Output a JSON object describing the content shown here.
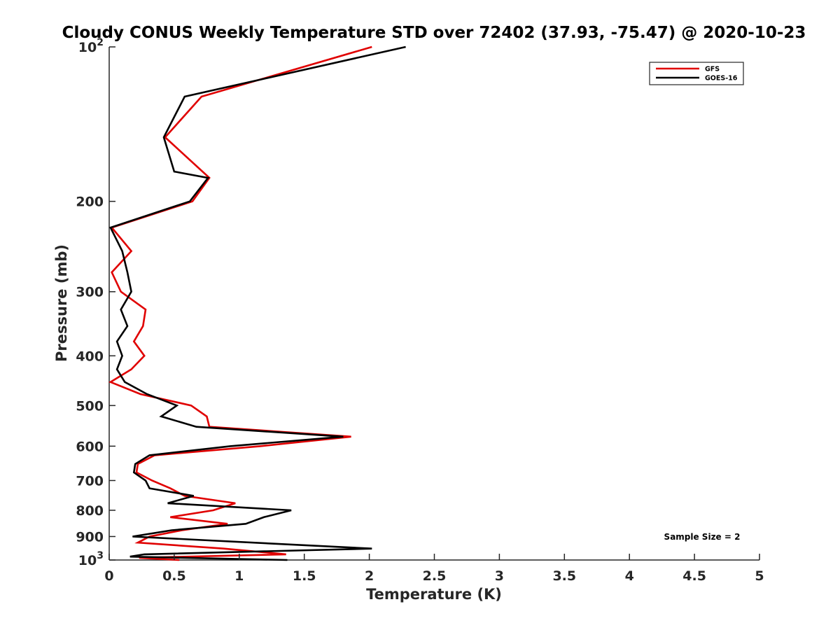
{
  "chart_data": {
    "type": "line",
    "title": "Cloudy CONUS Weekly Temperature STD over 72402 (37.93, -75.47) @ 2020-10-23",
    "xlabel": "Temperature (K)",
    "ylabel": "Pressure (mb)",
    "xlim": [
      0,
      5
    ],
    "ylim": [
      100,
      1000
    ],
    "y_scale": "log",
    "y_reversed": true,
    "grid": false,
    "legend_position": "top-right",
    "x_ticks": [
      "0",
      "0.5",
      "1",
      "1.5",
      "2",
      "2.5",
      "3",
      "3.5",
      "4",
      "4.5",
      "5"
    ],
    "y_ticks": [
      {
        "value": 100,
        "base": "10",
        "exp": "2"
      },
      {
        "value": 200,
        "label": "200"
      },
      {
        "value": 300,
        "label": "300"
      },
      {
        "value": 400,
        "label": "400"
      },
      {
        "value": 500,
        "label": "500"
      },
      {
        "value": 600,
        "label": "600"
      },
      {
        "value": 700,
        "label": "700"
      },
      {
        "value": 800,
        "label": "800"
      },
      {
        "value": 900,
        "label": "900"
      },
      {
        "value": 1000,
        "base": "10",
        "exp": "3"
      }
    ],
    "annotation": "Sample Size = 2",
    "series": [
      {
        "name": "GFS",
        "color": "#e00000",
        "points": [
          [
            2.02,
            100
          ],
          [
            0.71,
            125
          ],
          [
            0.43,
            150
          ],
          [
            0.77,
            180
          ],
          [
            0.64,
            200
          ],
          [
            0.02,
            225
          ],
          [
            0.17,
            250
          ],
          [
            0.02,
            275
          ],
          [
            0.09,
            300
          ],
          [
            0.28,
            325
          ],
          [
            0.26,
            350
          ],
          [
            0.19,
            375
          ],
          [
            0.27,
            400
          ],
          [
            0.17,
            425
          ],
          [
            0.01,
            450
          ],
          [
            0.24,
            475
          ],
          [
            0.63,
            500
          ],
          [
            0.75,
            525
          ],
          [
            0.77,
            550
          ],
          [
            1.86,
            575
          ],
          [
            1.16,
            600
          ],
          [
            0.35,
            625
          ],
          [
            0.22,
            650
          ],
          [
            0.21,
            675
          ],
          [
            0.33,
            700
          ],
          [
            0.47,
            725
          ],
          [
            0.58,
            750
          ],
          [
            0.97,
            775
          ],
          [
            0.8,
            800
          ],
          [
            0.47,
            825
          ],
          [
            0.91,
            850
          ],
          [
            0.56,
            875
          ],
          [
            0.31,
            900
          ],
          [
            0.22,
            925
          ],
          [
            0.88,
            950
          ],
          [
            1.36,
            975
          ],
          [
            0.23,
            990
          ],
          [
            0.54,
            1000
          ]
        ]
      },
      {
        "name": "GOES-16",
        "color": "#000000",
        "points": [
          [
            2.28,
            100
          ],
          [
            0.58,
            125
          ],
          [
            0.42,
            150
          ],
          [
            0.5,
            175
          ],
          [
            0.76,
            180
          ],
          [
            0.62,
            200
          ],
          [
            0.01,
            225
          ],
          [
            0.1,
            250
          ],
          [
            0.14,
            275
          ],
          [
            0.17,
            300
          ],
          [
            0.09,
            325
          ],
          [
            0.14,
            350
          ],
          [
            0.06,
            375
          ],
          [
            0.1,
            400
          ],
          [
            0.06,
            425
          ],
          [
            0.12,
            450
          ],
          [
            0.29,
            475
          ],
          [
            0.52,
            500
          ],
          [
            0.4,
            525
          ],
          [
            0.67,
            550
          ],
          [
            1.8,
            575
          ],
          [
            0.93,
            600
          ],
          [
            0.31,
            625
          ],
          [
            0.2,
            650
          ],
          [
            0.19,
            675
          ],
          [
            0.28,
            700
          ],
          [
            0.31,
            725
          ],
          [
            0.65,
            750
          ],
          [
            0.45,
            775
          ],
          [
            1.4,
            800
          ],
          [
            1.19,
            825
          ],
          [
            1.05,
            850
          ],
          [
            0.48,
            875
          ],
          [
            0.18,
            900
          ],
          [
            2.02,
            950
          ],
          [
            0.27,
            975
          ],
          [
            0.16,
            985
          ],
          [
            1.37,
            1000
          ]
        ]
      }
    ]
  }
}
